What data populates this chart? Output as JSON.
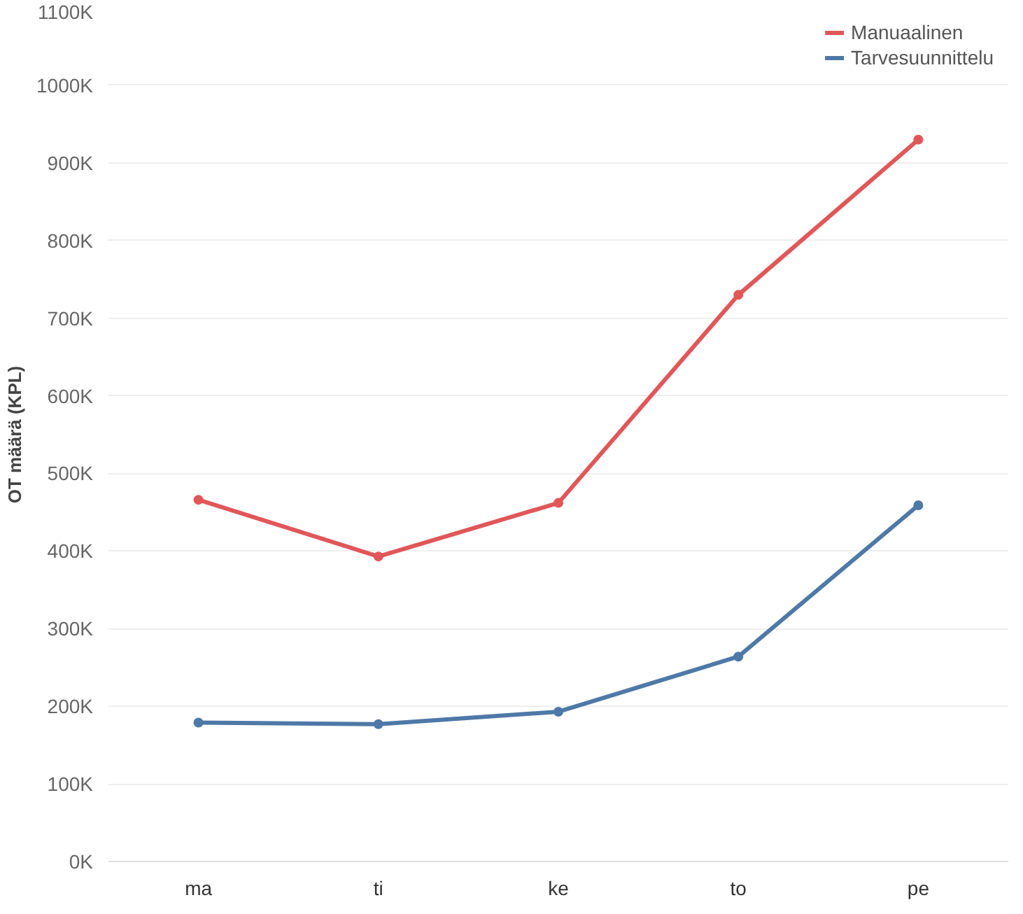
{
  "chart_data": {
    "type": "line",
    "ylabel": "OT määrä (KPL)",
    "categories": [
      "ma",
      "ti",
      "ke",
      "to",
      "pe"
    ],
    "series": [
      {
        "name": "Manuaalinen",
        "color": "#e15759",
        "values": [
          466000,
          393000,
          462000,
          730000,
          930000
        ]
      },
      {
        "name": "Tarvesuunnittelu",
        "color": "#4e79a7",
        "values": [
          179000,
          177000,
          193000,
          264000,
          459000
        ]
      }
    ],
    "ylim": [
      0,
      1100000
    ],
    "yticks": [
      {
        "value": 0,
        "label": "0K"
      },
      {
        "value": 100000,
        "label": "100K"
      },
      {
        "value": 200000,
        "label": "200K"
      },
      {
        "value": 300000,
        "label": "300K"
      },
      {
        "value": 400000,
        "label": "400K"
      },
      {
        "value": 500000,
        "label": "500K"
      },
      {
        "value": 600000,
        "label": "600K"
      },
      {
        "value": 700000,
        "label": "700K"
      },
      {
        "value": 800000,
        "label": "800K"
      },
      {
        "value": 900000,
        "label": "900K"
      },
      {
        "value": 1000000,
        "label": "1000K"
      },
      {
        "value": 1100000,
        "label": "1100K"
      }
    ],
    "grid": "y",
    "legend": "top right",
    "marker": "circle",
    "line_style": "solid"
  }
}
